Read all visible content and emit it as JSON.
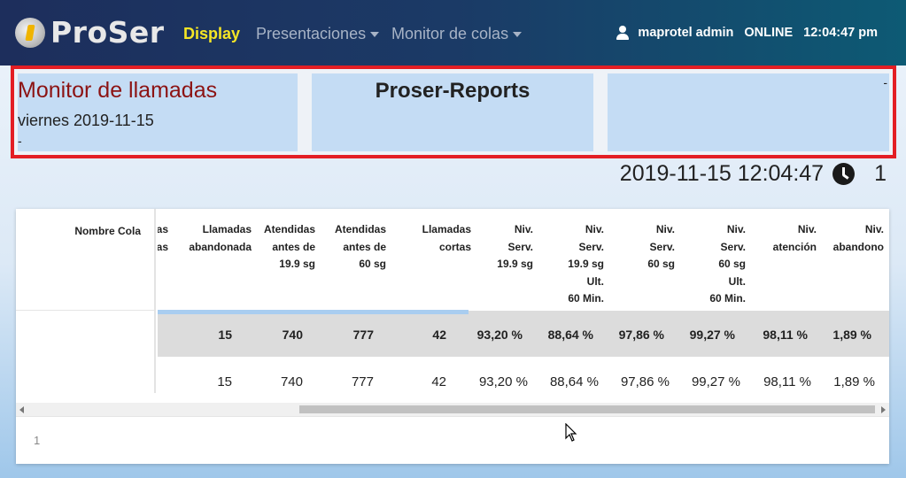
{
  "navbar": {
    "brand": "ProSer",
    "items": [
      {
        "label": "Display",
        "active": true
      },
      {
        "label": "Presentaciones",
        "dropdown": true
      },
      {
        "label": "Monitor de colas",
        "dropdown": true
      }
    ],
    "user": "maprotel admin",
    "status": "ONLINE",
    "time": "12:04:47 pm"
  },
  "header": {
    "title": "Monitor de llamadas",
    "date": "viernes 2019-11-15",
    "dash_left": "-",
    "center_title": "Proser-Reports",
    "dash_right": "-"
  },
  "clock": {
    "datetime": "2019-11-15 12:04:47",
    "count": "1"
  },
  "table": {
    "fixed_header": "Nombre Cola",
    "columns": [
      {
        "lines": [
          "as",
          "as"
        ]
      },
      {
        "lines": [
          "Llamadas",
          "abandonada"
        ]
      },
      {
        "lines": [
          "Atendidas",
          "antes de",
          "19.9 sg"
        ]
      },
      {
        "lines": [
          "Atendidas",
          "antes de",
          "60 sg"
        ]
      },
      {
        "lines": [
          "Llamadas",
          "cortas"
        ]
      },
      {
        "lines": [
          "Niv.",
          "Serv.",
          "19.9 sg"
        ]
      },
      {
        "lines": [
          "Niv.",
          "Serv.",
          "19.9 sg",
          "Ult.",
          "60 Min."
        ]
      },
      {
        "lines": [
          "Niv.",
          "Serv.",
          "60 sg"
        ]
      },
      {
        "lines": [
          "Niv.",
          "Serv.",
          "60 sg",
          "Ult.",
          "60 Min."
        ]
      },
      {
        "lines": [
          "Niv.",
          "atención"
        ]
      },
      {
        "lines": [
          "Niv.",
          "abandono"
        ]
      }
    ],
    "rows": [
      {
        "cells": [
          "",
          "15",
          "740",
          "777",
          "42",
          "93,20 %",
          "88,64 %",
          "97,86 %",
          "99,27 %",
          "98,11 %",
          "1,89 %"
        ]
      },
      {
        "cells": [
          "",
          "15",
          "740",
          "777",
          "42",
          "93,20 %",
          "88,64 %",
          "97,86 %",
          "99,27 %",
          "98,11 %",
          "1,89 %"
        ]
      }
    ]
  },
  "pager": {
    "page": "1"
  }
}
